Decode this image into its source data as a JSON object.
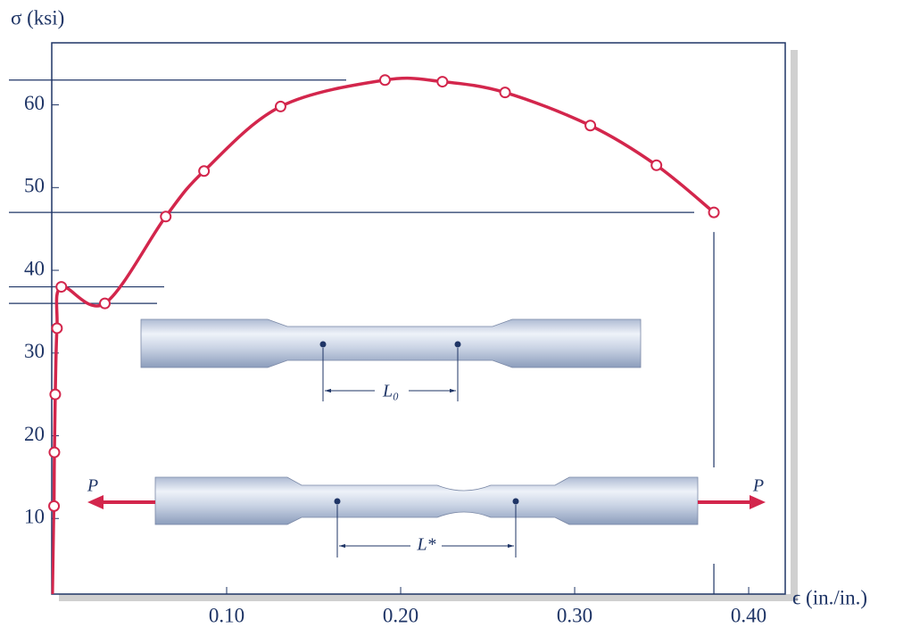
{
  "chart_data": {
    "type": "line",
    "y_label": "σ (ksi)",
    "x_label": "ϵ (in./in.)",
    "x": [
      0.0008,
      0.001,
      0.0015,
      0.0025,
      0.005,
      0.03,
      0.065,
      0.087,
      0.131,
      0.191,
      0.224,
      0.26,
      0.309,
      0.347,
      0.38
    ],
    "values": [
      11.5,
      18,
      25,
      33,
      38,
      36,
      46.5,
      52,
      59.8,
      63,
      62.8,
      61.5,
      57.5,
      52.7,
      47
    ],
    "color": "#d3264c",
    "xlim": [
      0,
      0.421
    ],
    "ylim": [
      0,
      67.5
    ],
    "xticks": [
      {
        "value": 0.1,
        "label": "0.10"
      },
      {
        "value": 0.2,
        "label": "0.20"
      },
      {
        "value": 0.3,
        "label": "0.30"
      },
      {
        "value": 0.4,
        "label": "0.40"
      }
    ],
    "yticks": [
      10,
      20,
      30,
      40,
      50,
      60
    ],
    "annotations": {
      "gauge_length": "L₀",
      "final_length": "L*",
      "load_left": "P",
      "load_right": "P"
    }
  }
}
